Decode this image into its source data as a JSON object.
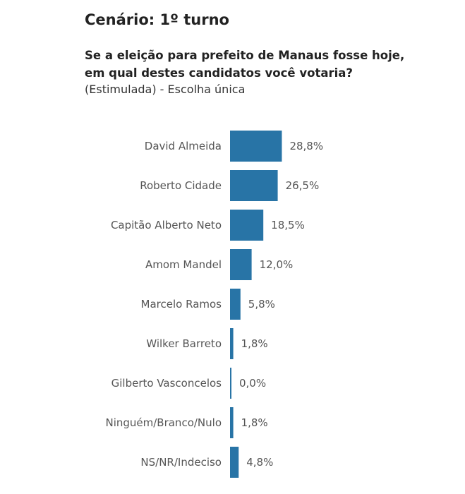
{
  "header": {
    "title": "Cenário: 1º turno",
    "question_line1": "Se a eleição para prefeito de Manaus fosse hoje,",
    "question_line2": "em qual destes candidatos você votaria?",
    "subtitle": "(Estimulada) - Escolha única"
  },
  "colors": {
    "bar": "#2874a6"
  },
  "chart_data": {
    "type": "bar",
    "orientation": "horizontal",
    "categories": [
      "David Almeida",
      "Roberto Cidade",
      "Capitão Alberto Neto",
      "Amom Mandel",
      "Marcelo Ramos",
      "Wilker Barreto",
      "Gilberto Vasconcelos",
      "Ninguém/Branco/Nulo",
      "NS/NR/Indeciso"
    ],
    "values": [
      28.8,
      26.5,
      18.5,
      12.0,
      5.8,
      1.8,
      0.0,
      1.8,
      4.8
    ],
    "value_labels": [
      "28,8%",
      "26,5%",
      "18,5%",
      "12,0%",
      "5,8%",
      "1,8%",
      "0,0%",
      "1,8%",
      "4,8%"
    ],
    "title": "Cenário: 1º turno",
    "xlabel": "",
    "ylabel": "",
    "grid": false,
    "legend": "none"
  }
}
